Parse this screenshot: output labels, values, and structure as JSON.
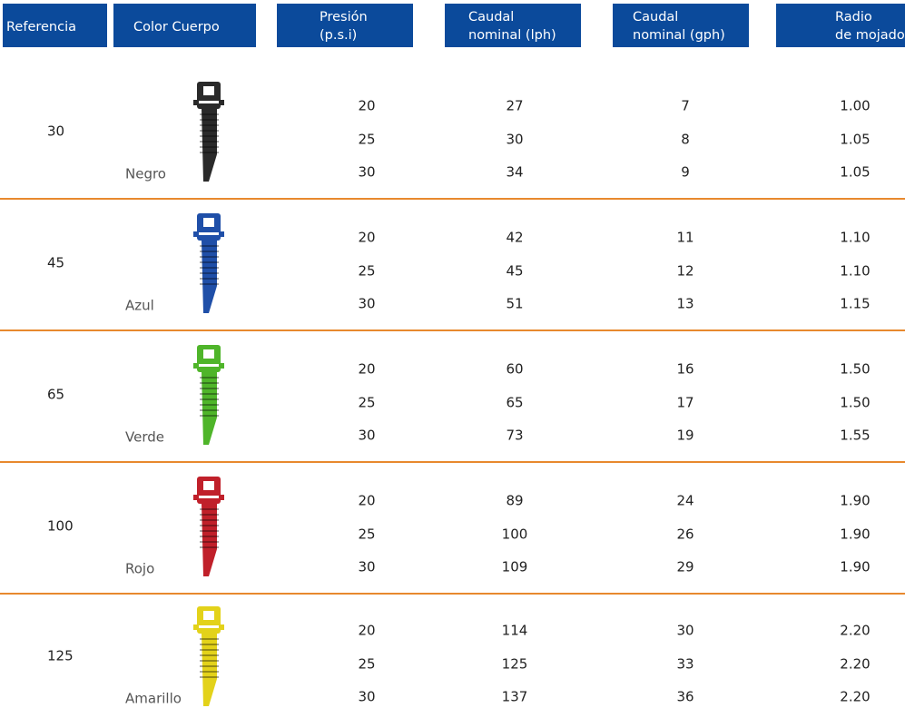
{
  "header": {
    "columns": [
      {
        "lines": [
          "Referencia"
        ]
      },
      {
        "lines": [
          "Color Cuerpo"
        ]
      },
      {
        "lines": [
          "Presión",
          "(p.s.i)"
        ]
      },
      {
        "lines": [
          "Caudal",
          "nominal (lph)"
        ]
      },
      {
        "lines": [
          "Caudal",
          "nominal (gph)"
        ]
      },
      {
        "lines": [
          "Radio",
          "de mojado"
        ]
      }
    ]
  },
  "groups": [
    {
      "reference": "30",
      "color": "Negro",
      "rows": [
        [
          "20",
          "27",
          "7",
          "1.00"
        ],
        [
          "25",
          "30",
          "8",
          "1.05"
        ],
        [
          "30",
          "34",
          "9",
          "1.05"
        ]
      ]
    },
    {
      "reference": "45",
      "color": "Azul",
      "rows": [
        [
          "20",
          "42",
          "11",
          "1.10"
        ],
        [
          "25",
          "45",
          "12",
          "1.10"
        ],
        [
          "30",
          "51",
          "13",
          "1.15"
        ]
      ]
    },
    {
      "reference": "65",
      "color": "Verde",
      "rows": [
        [
          "20",
          "60",
          "16",
          "1.50"
        ],
        [
          "25",
          "65",
          "17",
          "1.50"
        ],
        [
          "30",
          "73",
          "19",
          "1.55"
        ]
      ]
    },
    {
      "reference": "100",
      "color": "Rojo",
      "rows": [
        [
          "20",
          "89",
          "24",
          "1.90"
        ],
        [
          "25",
          "100",
          "26",
          "1.90"
        ],
        [
          "30",
          "109",
          "29",
          "1.90"
        ]
      ]
    },
    {
      "reference": "125",
      "color": "Amarillo",
      "rows": [
        [
          "20",
          "114",
          "30",
          "2.20"
        ],
        [
          "25",
          "125",
          "33",
          "2.20"
        ],
        [
          "30",
          "137",
          "36",
          "2.20"
        ]
      ]
    }
  ]
}
